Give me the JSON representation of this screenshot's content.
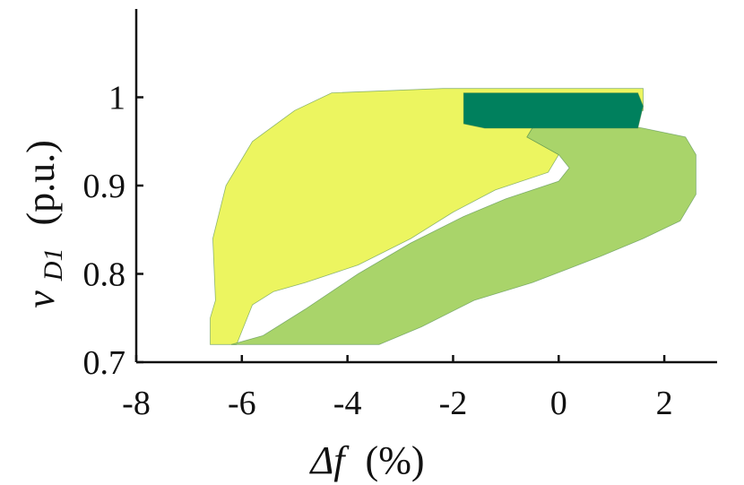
{
  "chart_data": {
    "type": "area",
    "title": "",
    "xlabel": "Δf (%)",
    "xlabel_symbol": "Δf",
    "xlabel_unit": "(%)",
    "ylabel": "v_D1 (p.u.)",
    "ylabel_symbol": "v",
    "ylabel_subscript": "D1",
    "ylabel_unit": "(p.u.)",
    "xlim": [
      -8,
      3
    ],
    "ylim": [
      0.7,
      1.1
    ],
    "xticks": [
      -8,
      -6,
      -4,
      -2,
      0,
      2
    ],
    "xtick_labels": [
      "-8",
      "-6",
      "-4",
      "-2",
      "0",
      "2"
    ],
    "yticks": [
      0.7,
      0.8,
      0.9,
      1.0
    ],
    "ytick_labels": [
      "0.7",
      "0.8",
      "0.9",
      "1"
    ],
    "grid": false,
    "legend": "none",
    "colors": {
      "region_yellow": "#ecf560",
      "region_light_green": "#a9d46a",
      "region_mid_green": "#7cbf63",
      "region_dark_green": "#00805d",
      "edge": "#4f8a4a"
    },
    "regions": [
      {
        "name": "yellow-region",
        "color": "#ecf560",
        "points": [
          [
            -6.6,
            0.72
          ],
          [
            -6.6,
            0.75
          ],
          [
            -6.5,
            0.77
          ],
          [
            -6.55,
            0.84
          ],
          [
            -6.3,
            0.9
          ],
          [
            -5.8,
            0.95
          ],
          [
            -5.0,
            0.985
          ],
          [
            -4.3,
            1.005
          ],
          [
            -2.2,
            1.01
          ],
          [
            1.6,
            1.01
          ],
          [
            1.6,
            0.985
          ],
          [
            0.6,
            0.975
          ],
          [
            -0.5,
            0.965
          ],
          [
            -0.6,
            0.955
          ],
          [
            0.0,
            0.935
          ],
          [
            -0.2,
            0.915
          ],
          [
            -1.2,
            0.895
          ],
          [
            -2.0,
            0.87
          ],
          [
            -2.8,
            0.84
          ],
          [
            -3.8,
            0.81
          ],
          [
            -4.8,
            0.79
          ],
          [
            -5.4,
            0.78
          ],
          [
            -5.8,
            0.765
          ],
          [
            -6.0,
            0.735
          ],
          [
            -6.1,
            0.72
          ]
        ]
      },
      {
        "name": "green-region",
        "color": "#a9d46a",
        "points": [
          [
            -6.2,
            0.72
          ],
          [
            -5.6,
            0.73
          ],
          [
            -4.8,
            0.76
          ],
          [
            -3.8,
            0.8
          ],
          [
            -2.8,
            0.835
          ],
          [
            -1.8,
            0.865
          ],
          [
            -1.0,
            0.885
          ],
          [
            0.0,
            0.905
          ],
          [
            0.2,
            0.92
          ],
          [
            0.0,
            0.935
          ],
          [
            -0.6,
            0.955
          ],
          [
            -0.5,
            0.965
          ],
          [
            0.6,
            0.975
          ],
          [
            1.6,
            0.965
          ],
          [
            2.4,
            0.955
          ],
          [
            2.6,
            0.935
          ],
          [
            2.6,
            0.89
          ],
          [
            2.3,
            0.86
          ],
          [
            1.6,
            0.84
          ],
          [
            0.8,
            0.82
          ],
          [
            -0.5,
            0.79
          ],
          [
            -1.6,
            0.77
          ],
          [
            -2.6,
            0.74
          ],
          [
            -3.4,
            0.72
          ]
        ]
      },
      {
        "name": "dark-green-region",
        "color": "#00805d",
        "points": [
          [
            -1.8,
            0.97
          ],
          [
            -1.8,
            1.005
          ],
          [
            1.5,
            1.005
          ],
          [
            1.6,
            0.99
          ],
          [
            1.5,
            0.965
          ],
          [
            -1.4,
            0.965
          ]
        ]
      }
    ]
  }
}
